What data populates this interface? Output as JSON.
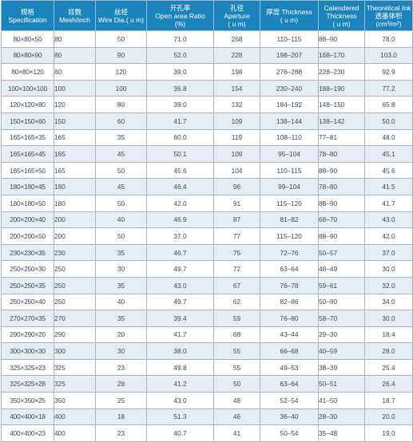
{
  "headers": [
    {
      "l1": "规格",
      "l2": "Specification"
    },
    {
      "l1": "目数",
      "l2": "Mesh/inch"
    },
    {
      "l1": "丝经",
      "l2": "Wire Dia.( u m)"
    },
    {
      "l1": "开孔率",
      "l2": "Open area Ratio",
      "l3": "(%)"
    },
    {
      "l1": "孔径",
      "l2": "Aperture",
      "l3": "( u m)"
    },
    {
      "l1": "厚度 Thickness",
      "l2": "( u m)"
    },
    {
      "l1": "Calendered",
      "l2": "Thickness",
      "l3": "( u m)"
    },
    {
      "l1": "Theoretical Ink",
      "l2": "透墨体积",
      "l3": "(cm³/m²)"
    }
  ],
  "rows": [
    [
      "80×80×50",
      "80",
      "50",
      "71.0",
      "268",
      "110–115",
      "88–90",
      "78.0"
    ],
    [
      "80×80×90",
      "80",
      "90",
      "52.0",
      "228",
      "198–207",
      "168–170",
      "103.0"
    ],
    [
      "80×80×120",
      "80",
      "120",
      "39.0",
      "198",
      "276–288",
      "228–230",
      "92.9"
    ],
    [
      "100×100×100",
      "100",
      "100",
      "36.8",
      "154",
      "230–240",
      "188–190",
      "77.2"
    ],
    [
      "120×120×80",
      "120",
      "80",
      "39.0",
      "132",
      "184–192",
      "148–150",
      "65.8"
    ],
    [
      "150×150×60",
      "150",
      "60",
      "41.7",
      "109",
      "138–144",
      "138–142",
      "50.0"
    ],
    [
      "165×165×35",
      "165",
      "35",
      "60.0",
      "119",
      "108–110",
      "77–81",
      "48.0"
    ],
    [
      "165×165×45",
      "165",
      "45",
      "50.1",
      "109",
      "95–104",
      "78–80",
      "45.1"
    ],
    [
      "165×165×50",
      "165",
      "50",
      "45.6",
      "104",
      "110–115",
      "88–90",
      "45.6"
    ],
    [
      "180×180×45",
      "180",
      "45",
      "46.4",
      "96",
      "99–104",
      "78–80",
      "41.5"
    ],
    [
      "180×180×50",
      "180",
      "50",
      "42.0",
      "91",
      "115–120",
      "88–90",
      "41.7"
    ],
    [
      "200×200×40",
      "200",
      "40",
      "46.9",
      "87",
      "81–82",
      "68–70",
      "43.0"
    ],
    [
      "200×200×50",
      "200",
      "50",
      "37.0",
      "77",
      "115–120",
      "88–90",
      "42.0"
    ],
    [
      "230×230×35",
      "230",
      "35",
      "46.7",
      "75",
      "72–76",
      "50–57",
      "37.0"
    ],
    [
      "250×250×30",
      "250",
      "30",
      "49.7",
      "72",
      "63–64",
      "48–49",
      "30.0"
    ],
    [
      "250×250×35",
      "250",
      "35",
      "43.0",
      "67",
      "76–78",
      "59–61",
      "32.0"
    ],
    [
      "250×250×40",
      "250",
      "40",
      "49.7",
      "62",
      "82–86",
      "50–80",
      "34.0"
    ],
    [
      "270×270×35",
      "270",
      "35",
      "39.4",
      "59",
      "76–80",
      "58–70",
      "30.0"
    ],
    [
      "290×290×20",
      "290",
      "20",
      "41.7",
      "68",
      "43–44",
      "29–30",
      "18.4"
    ],
    [
      "300×300×30",
      "300",
      "30",
      "38.0",
      "55",
      "66–68",
      "40–59",
      "28.0"
    ],
    [
      "325×325×23",
      "325",
      "23",
      "49.8",
      "55",
      "49–53",
      "38–39",
      "25.4"
    ],
    [
      "325×325×28",
      "325",
      "28",
      "41.2",
      "50",
      "63–64",
      "50–51",
      "26.4"
    ],
    [
      "350×350×25",
      "350",
      "25",
      "43.0",
      "48",
      "52–54",
      "41–50",
      "18.7"
    ],
    [
      "400×400×18",
      "400",
      "18",
      "51.3",
      "46",
      "36–40",
      "28–30",
      "20.0"
    ],
    [
      "400×400×23",
      "400",
      "23",
      "40.7",
      "41",
      "50–54",
      "35–48",
      "19.0"
    ]
  ]
}
